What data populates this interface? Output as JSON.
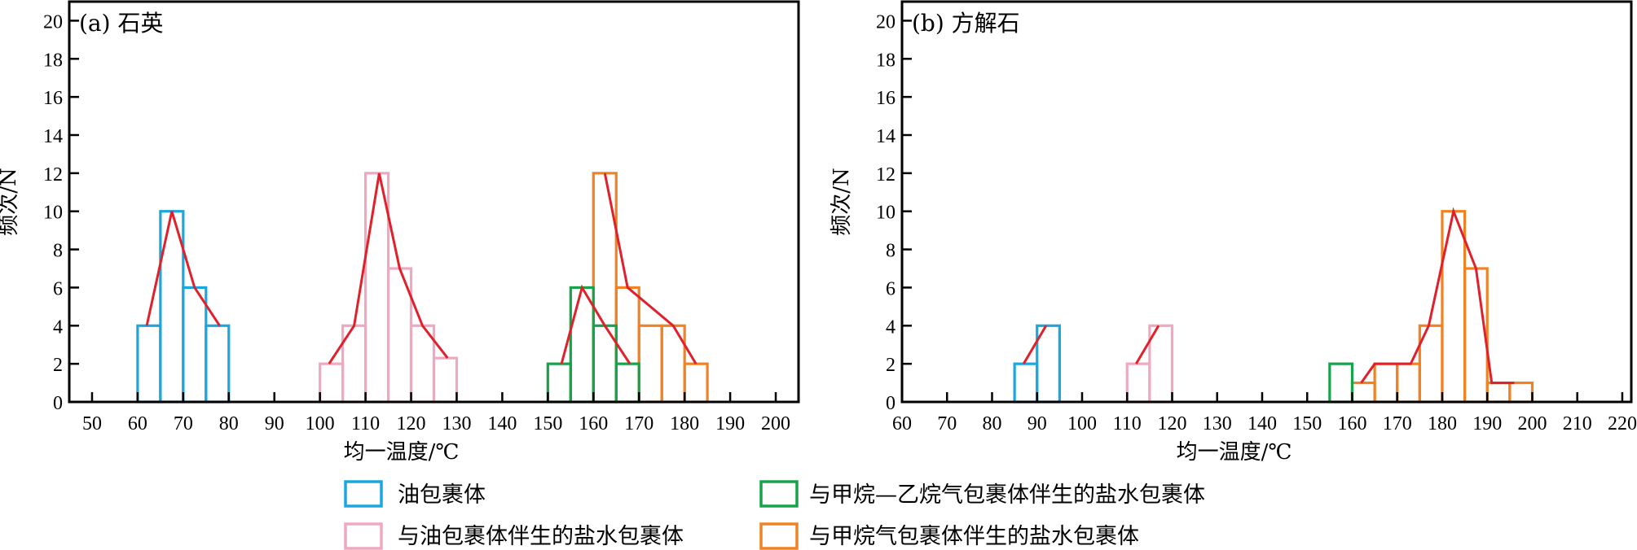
{
  "colors": {
    "oil": "#1aa6df",
    "brine_oil": "#f0a7c0",
    "brine_ch4_c2h6": "#16a34a",
    "brine_ch4": "#f08224",
    "trend": "#e0202a",
    "axis": "#000000"
  },
  "legend": {
    "oil": "油包裹体",
    "brine_ch4_c2h6": "与甲烷—乙烷气包裹体伴生的盐水包裹体",
    "brine_oil": "与油包裹体伴生的盐水包裹体",
    "brine_ch4": "与甲烷气包裹体伴生的盐水包裹体"
  },
  "chart_data": [
    {
      "type": "bar",
      "title": "(a) 石英",
      "xlabel": "均一温度/℃",
      "ylabel": "频次/N",
      "xlim": [
        45,
        205
      ],
      "ylim": [
        0,
        21
      ],
      "xticks": [
        50,
        60,
        70,
        80,
        90,
        100,
        110,
        120,
        130,
        140,
        150,
        160,
        170,
        180,
        190,
        200
      ],
      "yticks": [
        0,
        2,
        4,
        6,
        8,
        10,
        12,
        14,
        16,
        18,
        20
      ],
      "series": [
        {
          "key": "oil",
          "bins": [
            [
              60,
              65,
              4
            ],
            [
              65,
              70,
              10
            ],
            [
              70,
              75,
              6
            ],
            [
              75,
              80,
              4
            ]
          ],
          "trend": [
            [
              62,
              4
            ],
            [
              67.5,
              10
            ],
            [
              72.5,
              6
            ],
            [
              78,
              4
            ]
          ]
        },
        {
          "key": "brine_oil",
          "bins": [
            [
              100,
              105,
              2
            ],
            [
              105,
              110,
              4
            ],
            [
              110,
              115,
              12
            ],
            [
              115,
              120,
              7
            ],
            [
              120,
              125,
              4
            ],
            [
              125,
              130,
              2.3
            ]
          ],
          "trend": [
            [
              102,
              2
            ],
            [
              107.5,
              4
            ],
            [
              113,
              12
            ],
            [
              117.5,
              7
            ],
            [
              122.5,
              4
            ],
            [
              128,
              2.3
            ]
          ]
        },
        {
          "key": "brine_ch4_c2h6",
          "bins": [
            [
              150,
              155,
              2
            ],
            [
              155,
              160,
              6
            ],
            [
              160,
              165,
              4
            ],
            [
              165,
              170,
              2
            ]
          ],
          "trend": [
            [
              153,
              2
            ],
            [
              157.5,
              6
            ],
            [
              162.5,
              4
            ],
            [
              168,
              2
            ]
          ]
        },
        {
          "key": "brine_ch4",
          "bins": [
            [
              160,
              165,
              12
            ],
            [
              165,
              170,
              6
            ],
            [
              170,
              175,
              4
            ],
            [
              175,
              180,
              4
            ],
            [
              180,
              185,
              2
            ]
          ],
          "trend": [
            [
              162.5,
              12
            ],
            [
              167.5,
              6
            ],
            [
              177.5,
              4
            ],
            [
              182.5,
              2
            ]
          ]
        }
      ]
    },
    {
      "type": "bar",
      "title": "(b) 方解石",
      "xlabel": "均一温度/℃",
      "ylabel": "频次/N",
      "xlim": [
        60,
        222
      ],
      "ylim": [
        0,
        21
      ],
      "xticks": [
        60,
        70,
        80,
        90,
        100,
        110,
        120,
        130,
        140,
        150,
        160,
        170,
        180,
        190,
        200,
        210,
        220
      ],
      "yticks": [
        0,
        2,
        4,
        6,
        8,
        10,
        12,
        14,
        16,
        18,
        20
      ],
      "series": [
        {
          "key": "oil",
          "bins": [
            [
              85,
              90,
              2
            ],
            [
              90,
              95,
              4
            ]
          ],
          "trend": [
            [
              87,
              2
            ],
            [
              92,
              4
            ]
          ]
        },
        {
          "key": "brine_oil",
          "bins": [
            [
              110,
              115,
              2
            ],
            [
              115,
              120,
              4
            ]
          ],
          "trend": [
            [
              112,
              2
            ],
            [
              117,
              4
            ]
          ]
        },
        {
          "key": "brine_ch4_c2h6",
          "bins": [
            [
              155,
              160,
              2
            ]
          ],
          "trend": []
        },
        {
          "key": "brine_ch4",
          "bins": [
            [
              160,
              165,
              1
            ],
            [
              165,
              170,
              2
            ],
            [
              170,
              175,
              2
            ],
            [
              175,
              180,
              4
            ],
            [
              180,
              185,
              10
            ],
            [
              185,
              190,
              7
            ],
            [
              190,
              195,
              1
            ],
            [
              195,
              200,
              1
            ]
          ],
          "trend": [
            [
              162,
              1
            ],
            [
              165,
              2
            ],
            [
              173,
              2
            ],
            [
              177,
              4
            ],
            [
              182.5,
              10
            ],
            [
              187.5,
              7
            ],
            [
              191,
              1
            ],
            [
              196,
              1
            ]
          ]
        }
      ]
    }
  ]
}
